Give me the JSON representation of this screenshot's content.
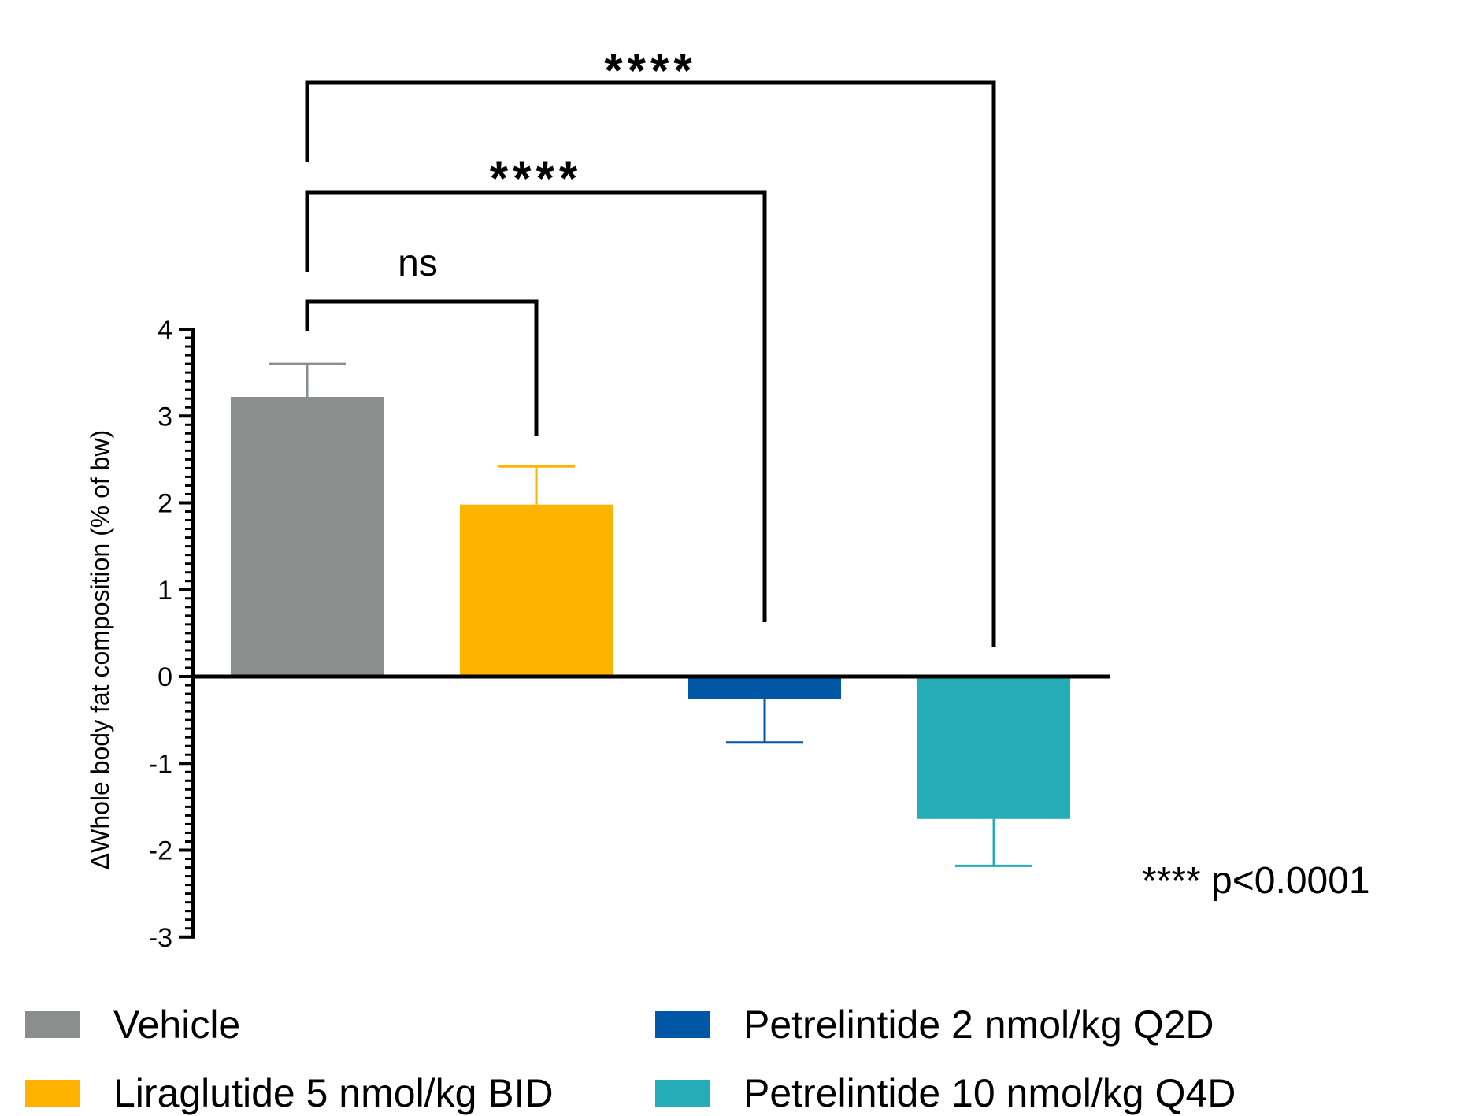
{
  "chart_data": {
    "type": "bar",
    "ylabel": "ΔWhole body fat composition (% of bw)",
    "ylim": [
      -3,
      4
    ],
    "yticks": [
      4,
      3,
      2,
      1,
      0,
      -1,
      -2,
      -3
    ],
    "series": [
      {
        "name": "Vehicle",
        "value": 3.22,
        "error": 0.38,
        "color": "#8a8e8d"
      },
      {
        "name": "Liraglutide 5 nmol/kg BID",
        "value": 1.98,
        "error": 0.44,
        "color": "#fdb300"
      },
      {
        "name": "Petrelintide 2 nmol/kg Q2D",
        "value": -0.26,
        "error": 0.5,
        "color": "#0057a5"
      },
      {
        "name": "Petrelintide 10 nmol/kg Q4D",
        "value": -1.64,
        "error": 0.54,
        "color": "#26aeb8"
      }
    ],
    "comparisons": [
      {
        "from": 0,
        "to": 1,
        "label": "ns"
      },
      {
        "from": 0,
        "to": 2,
        "label": "****"
      },
      {
        "from": 0,
        "to": 3,
        "label": "****"
      }
    ],
    "footnote": "**** p<0.0001",
    "legend_position": "bottom"
  }
}
